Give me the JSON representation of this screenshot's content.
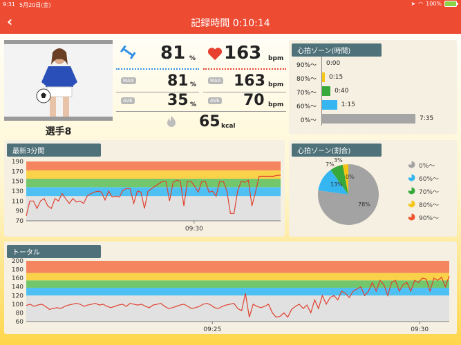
{
  "status_bar": {
    "time": "9:31",
    "date": "5月20日(金)",
    "battery": "100%"
  },
  "header": {
    "back_icon": "chevron-left-icon",
    "title": "記録時間 0:10:14"
  },
  "player": {
    "name": "選手8",
    "photo_icon": "player-photo"
  },
  "metrics": {
    "intensity": {
      "icon": "dumbbell-icon",
      "current": "81",
      "unit": "%",
      "max_label": "MAX",
      "max": "81",
      "ave_label": "AVE",
      "ave": "35"
    },
    "heart_rate": {
      "icon": "heart-icon",
      "current": "163",
      "unit": "bpm",
      "max_label": "MAX",
      "max": "163",
      "ave_label": "AVE",
      "ave": "70"
    },
    "calories": {
      "icon": "flame-icon",
      "value": "65",
      "unit": "kcal"
    }
  },
  "zone_time": {
    "title": "心拍ゾーン(時間)",
    "rows": [
      {
        "label": "90%〜",
        "value": "0:00",
        "fraction": 0.0,
        "color": "#f0532f"
      },
      {
        "label": "80%〜",
        "value": "0:15",
        "fraction": 0.02,
        "color": "#f5c518"
      },
      {
        "label": "70%〜",
        "value": "0:40",
        "fraction": 0.09,
        "color": "#37a83c"
      },
      {
        "label": "60%〜",
        "value": "1:15",
        "fraction": 0.16,
        "color": "#35b6f0"
      },
      {
        "label": "0%〜",
        "value": "7:35",
        "fraction": 1.0,
        "color": "#a5a5a5"
      }
    ]
  },
  "zone_ratio": {
    "title": "心拍ゾーン(割合)",
    "slices": [
      {
        "label": "78%",
        "value": 78,
        "color": "#a3a3a3"
      },
      {
        "label": "13%",
        "value": 13,
        "color": "#35b6f0"
      },
      {
        "label": "7%",
        "value": 7,
        "color": "#37a83c"
      },
      {
        "label": "3%",
        "value": 3,
        "color": "#f5c518"
      },
      {
        "label": "0%",
        "value": 0,
        "color": "#f0532f"
      }
    ],
    "legend": [
      {
        "label": "0%〜",
        "color": "#a3a3a3"
      },
      {
        "label": "60%〜",
        "color": "#35b6f0"
      },
      {
        "label": "70%〜",
        "color": "#37a83c"
      },
      {
        "label": "80%〜",
        "color": "#f5c518"
      },
      {
        "label": "90%〜",
        "color": "#f0532f"
      }
    ]
  },
  "chart_data": [
    {
      "type": "line",
      "title": "最新3分間",
      "ylim": [
        70,
        190
      ],
      "yticks": [
        "190",
        "170",
        "150",
        "130",
        "110",
        "90",
        "70"
      ],
      "x_label_ticks": [
        "09:30"
      ],
      "zones": [
        {
          "from": 70,
          "to": 120,
          "color": "#e1e1e1"
        },
        {
          "from": 120,
          "to": 138,
          "color": "#4ec0f3"
        },
        {
          "from": 138,
          "to": 155,
          "color": "#72c66b"
        },
        {
          "from": 155,
          "to": 172,
          "color": "#f9d24a"
        },
        {
          "from": 172,
          "to": 190,
          "color": "#f5855f"
        }
      ],
      "series": [
        {
          "values": [
            80,
            110,
            110,
            95,
            110,
            115,
            100,
            95,
            115,
            110,
            125,
            115,
            105,
            115,
            108,
            110,
            105,
            120,
            125,
            128,
            130,
            128,
            112,
            130,
            118,
            120,
            118,
            132,
            135,
            135,
            105,
            130,
            128,
            95,
            130,
            135,
            140,
            145,
            150,
            150,
            110,
            148,
            152,
            150,
            100,
            150,
            150,
            140,
            128,
            150,
            150,
            128,
            130,
            120,
            150,
            150,
            130,
            85,
            85,
            130,
            150,
            148,
            152,
            100,
            128,
            160,
            160,
            160,
            160,
            160,
            162,
            162
          ]
        }
      ]
    },
    {
      "type": "line",
      "title": "トータル",
      "ylim": [
        60,
        200
      ],
      "yticks": [
        "200",
        "180",
        "160",
        "140",
        "120",
        "100",
        "80",
        "60"
      ],
      "x_label_ticks": [
        "09:25",
        "09:30"
      ],
      "zones": [
        {
          "from": 60,
          "to": 120,
          "color": "#e1e1e1"
        },
        {
          "from": 120,
          "to": 138,
          "color": "#4ec0f3"
        },
        {
          "from": 138,
          "to": 155,
          "color": "#72c66b"
        },
        {
          "from": 155,
          "to": 172,
          "color": "#f9d24a"
        },
        {
          "from": 172,
          "to": 200,
          "color": "#f5855f"
        }
      ],
      "series": [
        {
          "values": [
            97,
            100,
            95,
            98,
            100,
            95,
            88,
            90,
            92,
            90,
            95,
            98,
            100,
            102,
            100,
            95,
            98,
            100,
            102,
            98,
            100,
            95,
            92,
            95,
            98,
            100,
            95,
            102,
            100,
            98,
            100,
            95,
            92,
            98,
            100,
            102,
            95,
            90,
            92,
            95,
            98,
            100,
            95,
            90,
            92,
            95,
            100,
            102,
            98,
            92,
            90,
            95,
            98,
            100,
            102,
            90,
            85,
            125,
            70,
            100,
            95,
            92,
            95,
            100,
            80,
            70,
            72,
            80,
            70,
            88,
            95,
            100,
            90,
            98,
            80,
            110,
            90,
            120,
            100,
            115,
            120,
            110,
            130,
            125,
            115,
            130,
            135,
            140,
            120,
            130,
            150,
            130,
            155,
            145,
            120,
            150,
            155,
            130,
            145,
            150,
            130,
            155,
            150,
            160,
            158,
            130,
            160,
            155,
            162,
            140,
            165
          ]
        }
      ]
    }
  ]
}
